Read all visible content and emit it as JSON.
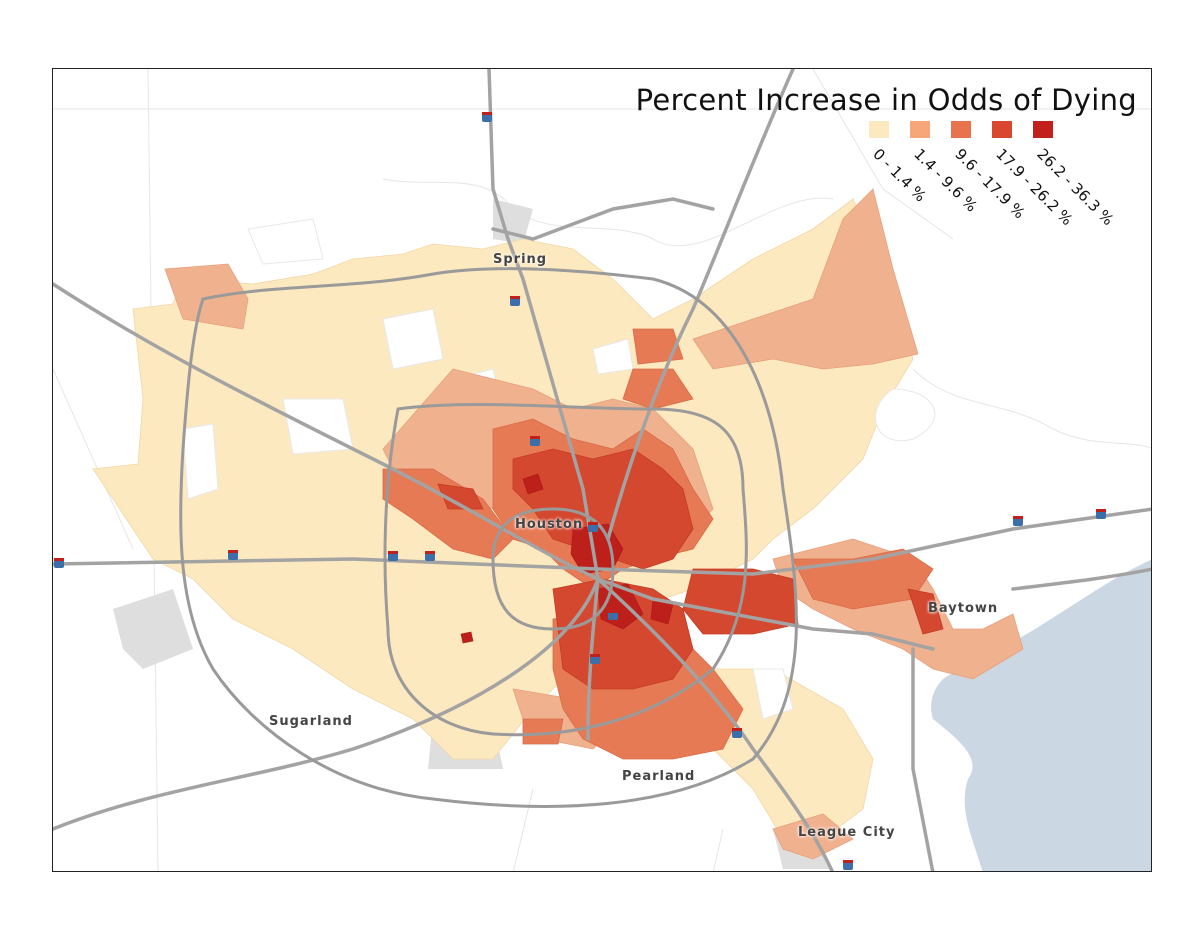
{
  "legend": {
    "title": "Percent Increase in Odds of Dying",
    "classes": [
      {
        "label": "0 - 1.4 %",
        "color": "#fde9bf"
      },
      {
        "label": "1.4 - 9.6 %",
        "color": "#f6a679"
      },
      {
        "label": "9.6 - 17.9 %",
        "color": "#e8744f"
      },
      {
        "label": "17.9 - 26.2 %",
        "color": "#d9472f"
      },
      {
        "label": "26.2 - 36.3 %",
        "color": "#c1201b"
      }
    ]
  },
  "cities": [
    {
      "name": "Spring"
    },
    {
      "name": "Houston"
    },
    {
      "name": "Baytown"
    },
    {
      "name": "Sugarland"
    },
    {
      "name": "Pearland"
    },
    {
      "name": "League City"
    }
  ],
  "colors": {
    "water": "#cbd8e3",
    "road": "#a3a3a3",
    "urban_gray": "#d9d9d9",
    "border": "#222222"
  }
}
